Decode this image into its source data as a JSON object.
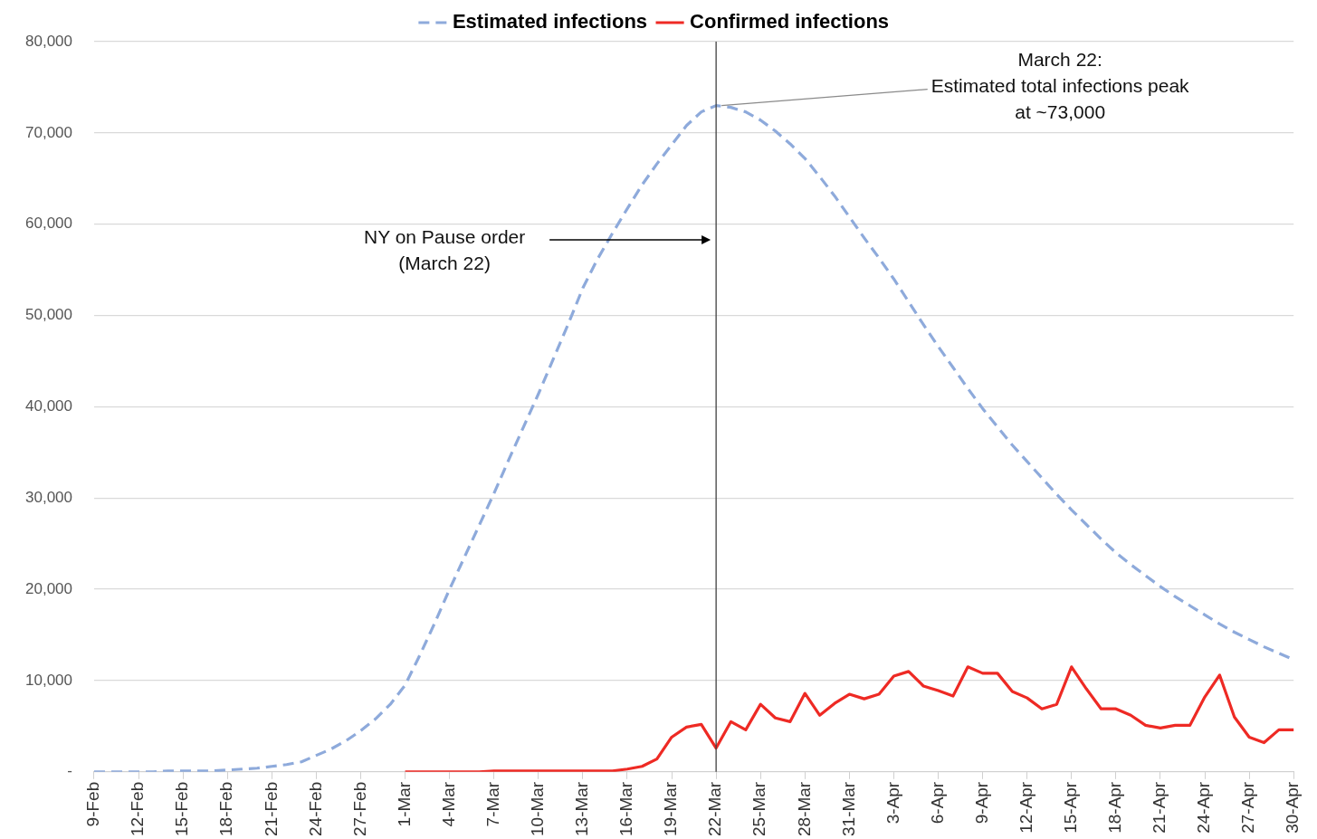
{
  "chart_data": {
    "type": "line",
    "categories": [
      "9-Feb",
      null,
      null,
      "12-Feb",
      null,
      null,
      "15-Feb",
      null,
      null,
      "18-Feb",
      null,
      null,
      "21-Feb",
      null,
      null,
      "24-Feb",
      null,
      null,
      "27-Feb",
      null,
      null,
      "1-Mar",
      null,
      null,
      "4-Mar",
      null,
      null,
      "7-Mar",
      null,
      null,
      "10-Mar",
      null,
      null,
      "13-Mar",
      null,
      null,
      "16-Mar",
      null,
      null,
      "19-Mar",
      null,
      null,
      "22-Mar",
      null,
      null,
      "25-Mar",
      null,
      null,
      "28-Mar",
      null,
      null,
      "31-Mar",
      null,
      null,
      "3-Apr",
      null,
      null,
      "6-Apr",
      null,
      null,
      "9-Apr",
      null,
      null,
      "12-Apr",
      null,
      null,
      "15-Apr",
      null,
      null,
      "18-Apr",
      null,
      null,
      "21-Apr",
      null,
      null,
      "24-Apr",
      null,
      null,
      "27-Apr",
      null,
      null,
      "30-Apr"
    ],
    "series": [
      {
        "name": "Estimated infections",
        "color": "#8eaadb",
        "line_style": "dashed",
        "values": [
          0,
          0,
          0,
          0,
          0,
          100,
          100,
          100,
          100,
          200,
          300,
          400,
          600,
          800,
          1100,
          1800,
          2500,
          3400,
          4500,
          5800,
          7400,
          9500,
          12800,
          16300,
          20000,
          23500,
          27000,
          30500,
          34200,
          37800,
          41400,
          45200,
          49000,
          53000,
          56200,
          59000,
          61700,
          64300,
          66600,
          68700,
          70800,
          72300,
          73000,
          72800,
          72300,
          71400,
          70200,
          68800,
          67200,
          65200,
          63100,
          60800,
          58500,
          56300,
          54000,
          51500,
          49000,
          46600,
          44300,
          42000,
          39800,
          37800,
          35800,
          34000,
          32200,
          30400,
          28700,
          27100,
          25500,
          24000,
          22700,
          21500,
          20300,
          19200,
          18200,
          17200,
          16200,
          15300,
          14500,
          13700,
          13000,
          12300
        ]
      },
      {
        "name": "Confirmed infections",
        "color": "#ee2a24",
        "line_style": "solid",
        "values": [
          null,
          null,
          null,
          null,
          null,
          null,
          null,
          null,
          null,
          null,
          null,
          null,
          null,
          null,
          null,
          null,
          null,
          null,
          null,
          null,
          null,
          0,
          0,
          0,
          0,
          0,
          0,
          100,
          100,
          100,
          100,
          100,
          100,
          100,
          100,
          100,
          300,
          600,
          1400,
          3800,
          4900,
          5200,
          2600,
          5500,
          4600,
          7400,
          5900,
          5500,
          8600,
          6200,
          7500,
          8500,
          8000,
          8500,
          10500,
          11000,
          9400,
          8900,
          8300,
          11500,
          10800,
          10800,
          8800,
          8100,
          6900,
          7400,
          11500,
          9100,
          6900,
          6900,
          6200,
          5100,
          4800,
          5100,
          5100,
          8200,
          10600,
          6000,
          3800,
          3200,
          4600,
          4600
        ]
      }
    ],
    "ylim": [
      0,
      80000
    ],
    "yticks": [
      {
        "value": 0,
        "label": "-"
      },
      {
        "value": 10000,
        "label": "10,000"
      },
      {
        "value": 20000,
        "label": "20,000"
      },
      {
        "value": 30000,
        "label": "30,000"
      },
      {
        "value": 40000,
        "label": "40,000"
      },
      {
        "value": 50000,
        "label": "50,000"
      },
      {
        "value": 60000,
        "label": "60,000"
      },
      {
        "value": 70000,
        "label": "70,000"
      },
      {
        "value": 80000,
        "label": "80,000"
      }
    ],
    "grid": "y",
    "legend": "top",
    "marker": "none",
    "ref_lines": [
      {
        "axis": "x",
        "value": "22-Mar",
        "color": "#404040"
      }
    ],
    "annotations": [
      {
        "text": "March 22:\nEstimated total infections peak\nat ~73,000",
        "x": "22-Mar",
        "y": 73000
      },
      "NY on Pause order\n(March 22)"
    ]
  }
}
